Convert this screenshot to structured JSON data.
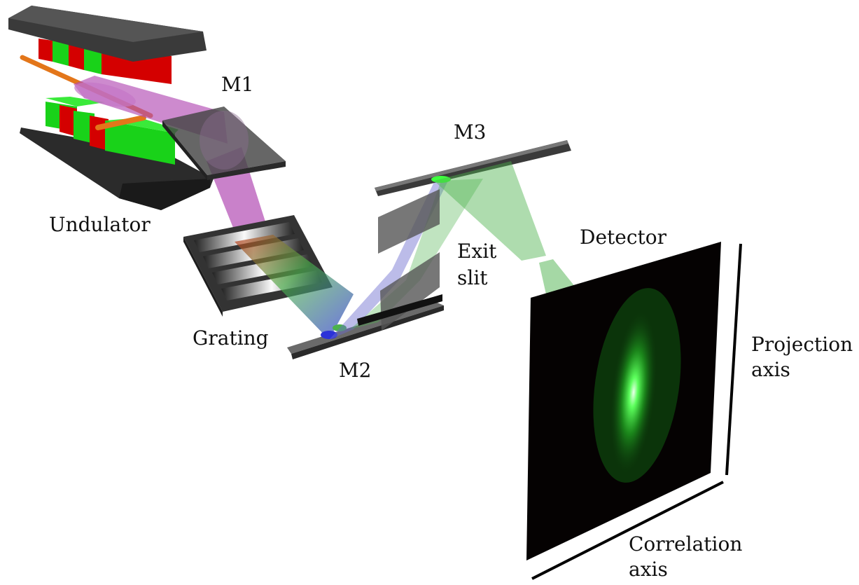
{
  "labels": {
    "undulator": "Undulator",
    "m1": "M1",
    "m3": "M3",
    "exit_slit_line1": "Exit",
    "exit_slit_line2": "slit",
    "detector": "Detector",
    "grating": "Grating",
    "m2": "M2",
    "projection_axis_line1": "Projection",
    "projection_axis_line2": "axis",
    "correlation_axis_line1": "Correlation",
    "correlation_axis_line2": "axis"
  },
  "colors": {
    "magnet_red": "#d40000",
    "magnet_green": "#19d219",
    "electron_beam": "#e3761a",
    "xray_beam": "#b24bb3",
    "mirror": "#4a4a4a",
    "dispersed_red": "#d83a1e",
    "dispersed_blue": "#2b32d8",
    "dispersed_green": "#4bb24b",
    "detector_screen": "#050202",
    "spot": "#33ff33"
  }
}
